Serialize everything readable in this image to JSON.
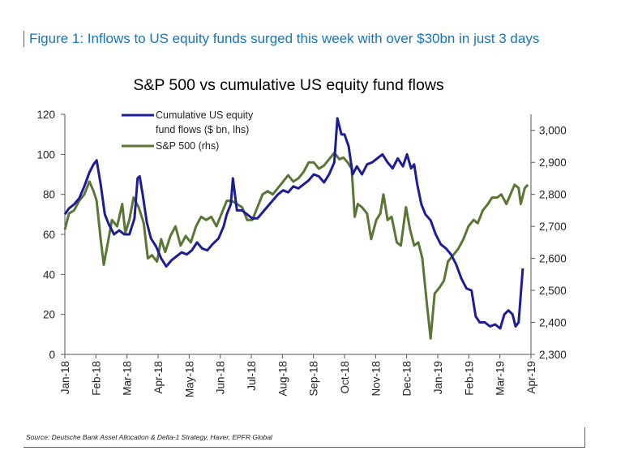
{
  "figure": {
    "caption": "Figure 1: Inflows to US equity funds surged this week with over $30bn in just 3 days",
    "source": "Source: Deutsche Bank Asset Allocation & Delta-1 Strategy, Haver, EPFR Global"
  },
  "chart_data": {
    "type": "line",
    "title": "S&P 500 vs cumulative US equity fund flows",
    "x_ticks": [
      "Jan-18",
      "Feb-18",
      "Mar-18",
      "Apr-18",
      "May-18",
      "Jun-18",
      "Jul-18",
      "Aug-18",
      "Sep-18",
      "Oct-18",
      "Nov-18",
      "Dec-18",
      "Jan-19",
      "Feb-19",
      "Mar-19",
      "Apr-19"
    ],
    "x_range": [
      "2018-01-01",
      "2019-04-01"
    ],
    "y_left": {
      "ylim": [
        0,
        120
      ],
      "ticks": [
        "0",
        "20",
        "40",
        "60",
        "80",
        "100",
        "120"
      ]
    },
    "y_right": {
      "ylim": [
        2300,
        3050
      ],
      "ticks": [
        "2,300",
        "2,400",
        "2,500",
        "2,600",
        "2,700",
        "2,800",
        "2,900",
        "3,000"
      ]
    },
    "grid": false,
    "legend_placement": "top-left",
    "series": [
      {
        "name": "Cumulative US equity fund flows ($ bn, lhs)",
        "legend_lines": [
          "Cumulative US equity",
          "fund flows ($ bn, lhs)"
        ],
        "axis": "left",
        "color": "#1c1c96",
        "points": [
          [
            "2018-01-01",
            70
          ],
          [
            "2018-01-05",
            73
          ],
          [
            "2018-01-10",
            75
          ],
          [
            "2018-01-15",
            78
          ],
          [
            "2018-01-20",
            84
          ],
          [
            "2018-01-25",
            91
          ],
          [
            "2018-01-29",
            95
          ],
          [
            "2018-02-01",
            97
          ],
          [
            "2018-02-05",
            85
          ],
          [
            "2018-02-09",
            70
          ],
          [
            "2018-02-13",
            65
          ],
          [
            "2018-02-18",
            60
          ],
          [
            "2018-02-23",
            62
          ],
          [
            "2018-02-28",
            60
          ],
          [
            "2018-03-05",
            60
          ],
          [
            "2018-03-10",
            68
          ],
          [
            "2018-03-13",
            88
          ],
          [
            "2018-03-15",
            89
          ],
          [
            "2018-03-18",
            80
          ],
          [
            "2018-03-22",
            66
          ],
          [
            "2018-03-26",
            58
          ],
          [
            "2018-03-31",
            54
          ],
          [
            "2018-04-05",
            48
          ],
          [
            "2018-04-10",
            44
          ],
          [
            "2018-04-15",
            47
          ],
          [
            "2018-04-20",
            49
          ],
          [
            "2018-04-25",
            51
          ],
          [
            "2018-04-30",
            50
          ],
          [
            "2018-05-05",
            52
          ],
          [
            "2018-05-10",
            56
          ],
          [
            "2018-05-15",
            53
          ],
          [
            "2018-05-20",
            52
          ],
          [
            "2018-05-25",
            55
          ],
          [
            "2018-05-31",
            58
          ],
          [
            "2018-06-05",
            64
          ],
          [
            "2018-06-08",
            70
          ],
          [
            "2018-06-12",
            75
          ],
          [
            "2018-06-14",
            88
          ],
          [
            "2018-06-18",
            72
          ],
          [
            "2018-06-23",
            72
          ],
          [
            "2018-06-28",
            70
          ],
          [
            "2018-07-03",
            68
          ],
          [
            "2018-07-08",
            68
          ],
          [
            "2018-07-13",
            71
          ],
          [
            "2018-07-18",
            74
          ],
          [
            "2018-07-23",
            77
          ],
          [
            "2018-07-28",
            80
          ],
          [
            "2018-08-02",
            82
          ],
          [
            "2018-08-07",
            81
          ],
          [
            "2018-08-12",
            84
          ],
          [
            "2018-08-17",
            83
          ],
          [
            "2018-08-22",
            85
          ],
          [
            "2018-08-27",
            87
          ],
          [
            "2018-09-01",
            90
          ],
          [
            "2018-09-06",
            89
          ],
          [
            "2018-09-11",
            86
          ],
          [
            "2018-09-16",
            90
          ],
          [
            "2018-09-21",
            96
          ],
          [
            "2018-09-24",
            118
          ],
          [
            "2018-09-28",
            110
          ],
          [
            "2018-10-01",
            110
          ],
          [
            "2018-10-05",
            104
          ],
          [
            "2018-10-09",
            90
          ],
          [
            "2018-10-13",
            94
          ],
          [
            "2018-10-18",
            90
          ],
          [
            "2018-10-23",
            95
          ],
          [
            "2018-10-28",
            96
          ],
          [
            "2018-11-02",
            98
          ],
          [
            "2018-11-07",
            100
          ],
          [
            "2018-11-12",
            96
          ],
          [
            "2018-11-17",
            93
          ],
          [
            "2018-11-22",
            98
          ],
          [
            "2018-11-27",
            94
          ],
          [
            "2018-12-01",
            100
          ],
          [
            "2018-12-05",
            93
          ],
          [
            "2018-12-08",
            95
          ],
          [
            "2018-12-11",
            85
          ],
          [
            "2018-12-15",
            75
          ],
          [
            "2018-12-19",
            70
          ],
          [
            "2018-12-24",
            67
          ],
          [
            "2018-12-29",
            60
          ],
          [
            "2019-01-03",
            55
          ],
          [
            "2019-01-08",
            53
          ],
          [
            "2019-01-13",
            50
          ],
          [
            "2019-01-18",
            45
          ],
          [
            "2019-01-23",
            38
          ],
          [
            "2019-01-28",
            33
          ],
          [
            "2019-02-02",
            32
          ],
          [
            "2019-02-06",
            19
          ],
          [
            "2019-02-10",
            16
          ],
          [
            "2019-02-15",
            16
          ],
          [
            "2019-02-20",
            14
          ],
          [
            "2019-02-25",
            15
          ],
          [
            "2019-03-02",
            13
          ],
          [
            "2019-03-06",
            20
          ],
          [
            "2019-03-10",
            22
          ],
          [
            "2019-03-14",
            20
          ],
          [
            "2019-03-17",
            14
          ],
          [
            "2019-03-20",
            16
          ],
          [
            "2019-03-24",
            43
          ]
        ]
      },
      {
        "name": "S&P 500 (rhs)",
        "legend_lines": [
          "S&P 500 (rhs)"
        ],
        "axis": "right",
        "color": "#5a7634",
        "points": [
          [
            "2018-01-01",
            2690
          ],
          [
            "2018-01-05",
            2740
          ],
          [
            "2018-01-10",
            2750
          ],
          [
            "2018-01-15",
            2780
          ],
          [
            "2018-01-20",
            2800
          ],
          [
            "2018-01-25",
            2840
          ],
          [
            "2018-01-29",
            2810
          ],
          [
            "2018-02-01",
            2780
          ],
          [
            "2018-02-05",
            2660
          ],
          [
            "2018-02-08",
            2580
          ],
          [
            "2018-02-12",
            2650
          ],
          [
            "2018-02-16",
            2720
          ],
          [
            "2018-02-21",
            2700
          ],
          [
            "2018-02-26",
            2770
          ],
          [
            "2018-03-01",
            2680
          ],
          [
            "2018-03-05",
            2720
          ],
          [
            "2018-03-09",
            2790
          ],
          [
            "2018-03-14",
            2760
          ],
          [
            "2018-03-19",
            2710
          ],
          [
            "2018-03-23",
            2600
          ],
          [
            "2018-03-27",
            2610
          ],
          [
            "2018-04-01",
            2590
          ],
          [
            "2018-04-05",
            2660
          ],
          [
            "2018-04-09",
            2620
          ],
          [
            "2018-04-14",
            2670
          ],
          [
            "2018-04-19",
            2700
          ],
          [
            "2018-04-24",
            2640
          ],
          [
            "2018-04-29",
            2670
          ],
          [
            "2018-05-04",
            2650
          ],
          [
            "2018-05-09",
            2700
          ],
          [
            "2018-05-14",
            2730
          ],
          [
            "2018-05-19",
            2720
          ],
          [
            "2018-05-24",
            2730
          ],
          [
            "2018-05-29",
            2700
          ],
          [
            "2018-06-03",
            2740
          ],
          [
            "2018-06-08",
            2780
          ],
          [
            "2018-06-13",
            2780
          ],
          [
            "2018-06-18",
            2770
          ],
          [
            "2018-06-23",
            2760
          ],
          [
            "2018-06-28",
            2720
          ],
          [
            "2018-07-03",
            2720
          ],
          [
            "2018-07-08",
            2760
          ],
          [
            "2018-07-13",
            2800
          ],
          [
            "2018-07-18",
            2810
          ],
          [
            "2018-07-23",
            2800
          ],
          [
            "2018-07-28",
            2820
          ],
          [
            "2018-08-02",
            2840
          ],
          [
            "2018-08-07",
            2860
          ],
          [
            "2018-08-12",
            2840
          ],
          [
            "2018-08-17",
            2850
          ],
          [
            "2018-08-22",
            2870
          ],
          [
            "2018-08-27",
            2900
          ],
          [
            "2018-09-01",
            2900
          ],
          [
            "2018-09-06",
            2880
          ],
          [
            "2018-09-11",
            2890
          ],
          [
            "2018-09-16",
            2910
          ],
          [
            "2018-09-21",
            2930
          ],
          [
            "2018-09-26",
            2910
          ],
          [
            "2018-09-30",
            2915
          ],
          [
            "2018-10-04",
            2900
          ],
          [
            "2018-10-08",
            2880
          ],
          [
            "2018-10-11",
            2730
          ],
          [
            "2018-10-14",
            2770
          ],
          [
            "2018-10-18",
            2760
          ],
          [
            "2018-10-23",
            2740
          ],
          [
            "2018-10-27",
            2660
          ],
          [
            "2018-11-01",
            2720
          ],
          [
            "2018-11-05",
            2740
          ],
          [
            "2018-11-08",
            2800
          ],
          [
            "2018-11-12",
            2720
          ],
          [
            "2018-11-16",
            2730
          ],
          [
            "2018-11-21",
            2650
          ],
          [
            "2018-11-25",
            2640
          ],
          [
            "2018-11-30",
            2760
          ],
          [
            "2018-12-04",
            2690
          ],
          [
            "2018-12-08",
            2640
          ],
          [
            "2018-12-12",
            2650
          ],
          [
            "2018-12-16",
            2600
          ],
          [
            "2018-12-20",
            2470
          ],
          [
            "2018-12-24",
            2350
          ],
          [
            "2018-12-28",
            2490
          ],
          [
            "2019-01-02",
            2510
          ],
          [
            "2019-01-06",
            2530
          ],
          [
            "2019-01-10",
            2590
          ],
          [
            "2019-01-15",
            2610
          ],
          [
            "2019-01-20",
            2630
          ],
          [
            "2019-01-25",
            2660
          ],
          [
            "2019-01-30",
            2700
          ],
          [
            "2019-02-04",
            2720
          ],
          [
            "2019-02-08",
            2710
          ],
          [
            "2019-02-13",
            2750
          ],
          [
            "2019-02-18",
            2770
          ],
          [
            "2019-02-22",
            2790
          ],
          [
            "2019-02-27",
            2790
          ],
          [
            "2019-03-03",
            2800
          ],
          [
            "2019-03-08",
            2770
          ],
          [
            "2019-03-12",
            2800
          ],
          [
            "2019-03-16",
            2830
          ],
          [
            "2019-03-20",
            2820
          ],
          [
            "2019-03-22",
            2770
          ],
          [
            "2019-03-26",
            2820
          ],
          [
            "2019-03-29",
            2830
          ]
        ]
      }
    ]
  }
}
